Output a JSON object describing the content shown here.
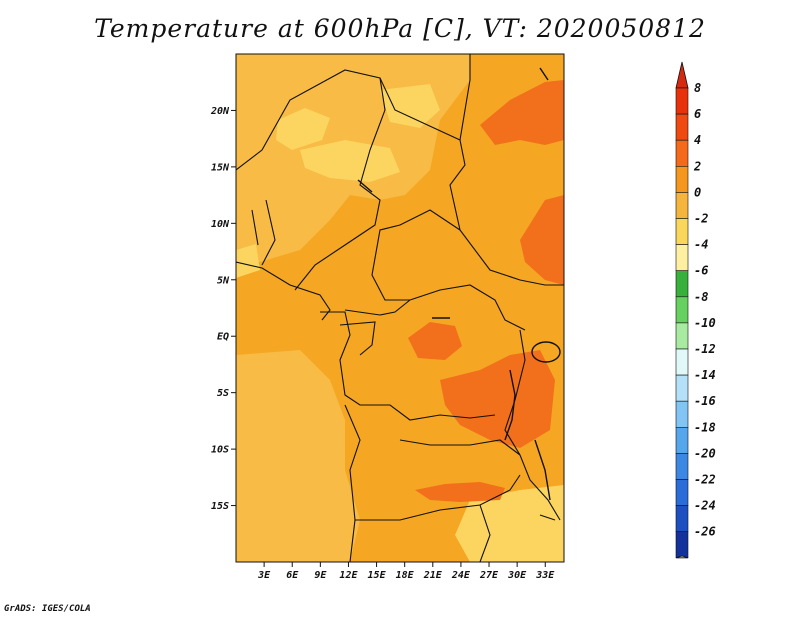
{
  "title": "Temperature at 600hPa [C], VT: 2020050812",
  "credit": "GrADS: IGES/COLA",
  "map": {
    "lon_range": [
      0,
      35
    ],
    "lat_range": [
      -20,
      25
    ],
    "lat_ticks": [
      {
        "value": 20,
        "label": "20N"
      },
      {
        "value": 15,
        "label": "15N"
      },
      {
        "value": 10,
        "label": "10N"
      },
      {
        "value": 5,
        "label": "5N"
      },
      {
        "value": 0,
        "label": "EQ"
      },
      {
        "value": -5,
        "label": "5S"
      },
      {
        "value": -10,
        "label": "10S"
      },
      {
        "value": -15,
        "label": "15S"
      }
    ],
    "lon_ticks": [
      {
        "value": 3,
        "label": "3E"
      },
      {
        "value": 6,
        "label": "6E"
      },
      {
        "value": 9,
        "label": "9E"
      },
      {
        "value": 12,
        "label": "12E"
      },
      {
        "value": 15,
        "label": "15E"
      },
      {
        "value": 18,
        "label": "18E"
      },
      {
        "value": 21,
        "label": "21E"
      },
      {
        "value": 24,
        "label": "24E"
      },
      {
        "value": 27,
        "label": "27E"
      },
      {
        "value": 30,
        "label": "30E"
      },
      {
        "value": 33,
        "label": "33E"
      }
    ],
    "base_color": "#f5a623"
  },
  "colorbar": {
    "levels": [
      {
        "label": "8",
        "color": "#e8320c"
      },
      {
        "label": "6",
        "color": "#f04a10"
      },
      {
        "label": "4",
        "color": "#f56a1a"
      },
      {
        "label": "2",
        "color": "#f5961e"
      },
      {
        "label": "0",
        "color": "#f5b43c"
      },
      {
        "label": "-2",
        "color": "#fad75a"
      },
      {
        "label": "-4",
        "color": "#fdf0a0"
      },
      {
        "label": "-6",
        "color": "#38b03c"
      },
      {
        "label": "-8",
        "color": "#66d060"
      },
      {
        "label": "-10",
        "color": "#a8eaa0"
      },
      {
        "label": "-12",
        "color": "#e0f8f8"
      },
      {
        "label": "-14",
        "color": "#b4e0f8"
      },
      {
        "label": "-16",
        "color": "#82c4f4"
      },
      {
        "label": "-18",
        "color": "#56a6ec"
      },
      {
        "label": "-20",
        "color": "#3a88e2"
      },
      {
        "label": "-22",
        "color": "#2a6cd8"
      },
      {
        "label": "-24",
        "color": "#1c50c0"
      },
      {
        "label": "-26",
        "color": "#12319a"
      }
    ],
    "top_color": "#d42a10",
    "bottom_color": "#dcdcf8",
    "segment_colors": [
      "#d42a10",
      "#e8320c",
      "#f04a10",
      "#f56a1a",
      "#f5961e",
      "#f5b43c",
      "#fad75a",
      "#fdf0a0",
      "#38b03c",
      "#66d060",
      "#a8eaa0",
      "#e0f8f8",
      "#b4e0f8",
      "#82c4f4",
      "#56a6ec",
      "#3a88e2",
      "#2a6cd8",
      "#1c50c0",
      "#12319a"
    ]
  }
}
